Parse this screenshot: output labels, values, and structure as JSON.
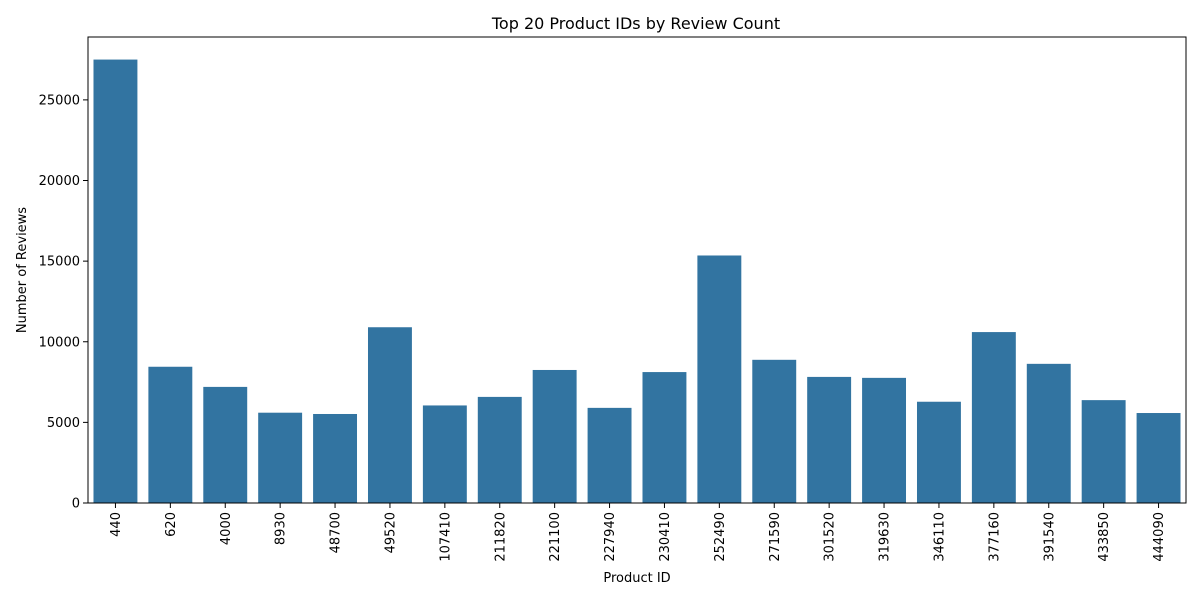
{
  "chart_data": {
    "type": "bar",
    "title": "Top 20 Product IDs by Review Count",
    "xlabel": "Product ID",
    "ylabel": "Number of Reviews",
    "categories": [
      "440",
      "620",
      "4000",
      "8930",
      "48700",
      "49520",
      "107410",
      "211820",
      "221100",
      "227940",
      "230410",
      "252490",
      "271590",
      "301520",
      "319630",
      "346110",
      "377160",
      "391540",
      "433850",
      "444090"
    ],
    "values": [
      27500,
      8450,
      7200,
      5600,
      5520,
      10900,
      6050,
      6580,
      8250,
      5900,
      8120,
      15350,
      8880,
      7820,
      7760,
      6280,
      10600,
      8630,
      6380,
      5580
    ],
    "ylim": [
      0,
      28900
    ],
    "yticks": [
      0,
      5000,
      10000,
      15000,
      20000,
      25000
    ],
    "grid": false,
    "bar_color": "#3274a1",
    "xtick_rotation": "vertical"
  }
}
